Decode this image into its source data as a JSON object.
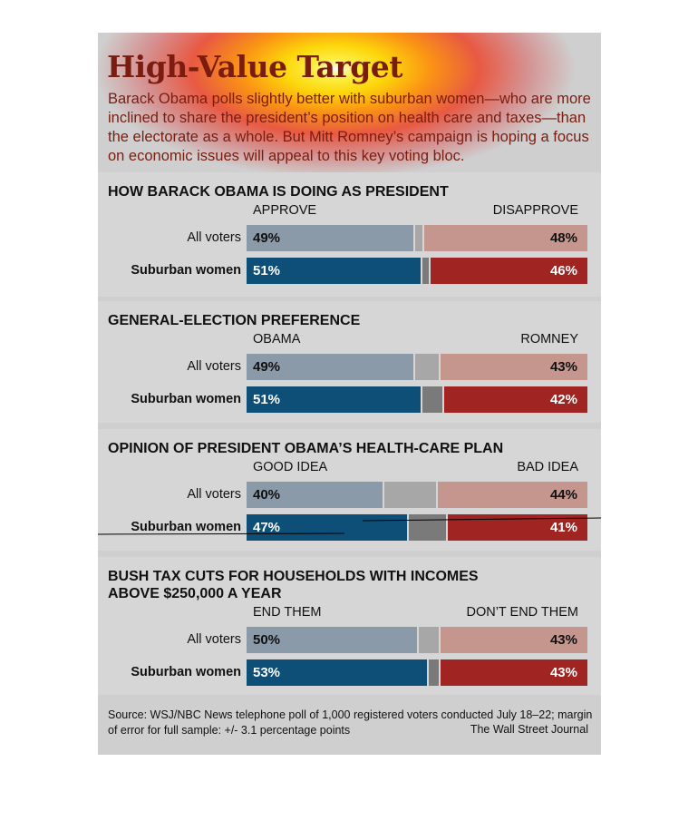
{
  "header": {
    "title": "High-Value Target",
    "subtitle": "Barack Obama polls slightly better with suburban women—who are more inclined to share the president’s position on health care and taxes—than the electorate as a whole. But Mitt Romney’s campaign is hoping a focus on economic issues will appeal to this key voting bloc."
  },
  "colors": {
    "all_left": "#8a9aa8",
    "all_mid": "#a7a7a7",
    "all_right": "#c4968e",
    "women_left": "#0e4f78",
    "women_mid": "#7a7a7a",
    "women_right": "#a02422"
  },
  "chart_data": [
    {
      "type": "bar",
      "title": "HOW BARACK OBAMA IS DOING AS PRESIDENT",
      "left_label": "APPROVE",
      "right_label": "DISAPPROVE",
      "categories": [
        "All voters",
        "Suburban women"
      ],
      "series": [
        {
          "name": "APPROVE",
          "values": [
            49,
            51
          ]
        },
        {
          "name": "DISAPPROVE",
          "values": [
            48,
            46
          ]
        }
      ],
      "labels": [
        [
          "49%",
          "48%"
        ],
        [
          "51%",
          "46%"
        ]
      ]
    },
    {
      "type": "bar",
      "title": "GENERAL-ELECTION PREFERENCE",
      "left_label": "OBAMA",
      "right_label": "ROMNEY",
      "categories": [
        "All voters",
        "Suburban women"
      ],
      "series": [
        {
          "name": "OBAMA",
          "values": [
            49,
            51
          ]
        },
        {
          "name": "ROMNEY",
          "values": [
            43,
            42
          ]
        }
      ],
      "labels": [
        [
          "49%",
          "43%"
        ],
        [
          "51%",
          "42%"
        ]
      ]
    },
    {
      "type": "bar",
      "title": "OPINION OF PRESIDENT OBAMA’S HEALTH-CARE PLAN",
      "left_label": "GOOD IDEA",
      "right_label": "BAD IDEA",
      "categories": [
        "All voters",
        "Suburban women"
      ],
      "series": [
        {
          "name": "GOOD IDEA",
          "values": [
            40,
            47
          ]
        },
        {
          "name": "BAD IDEA",
          "values": [
            44,
            41
          ]
        }
      ],
      "labels": [
        [
          "40%",
          "44%"
        ],
        [
          "47%",
          "41%"
        ]
      ]
    },
    {
      "type": "bar",
      "title": "BUSH TAX CUTS FOR HOUSEHOLDS WITH INCOMES ABOVE $250,000 A YEAR",
      "left_label": "END THEM",
      "right_label": "DON’T END THEM",
      "categories": [
        "All voters",
        "Suburban women"
      ],
      "series": [
        {
          "name": "END THEM",
          "values": [
            50,
            53
          ]
        },
        {
          "name": "DON’T END THEM",
          "values": [
            43,
            43
          ]
        }
      ],
      "labels": [
        [
          "50%",
          "43%"
        ],
        [
          "53%",
          "43%"
        ]
      ]
    }
  ],
  "footer": {
    "source": "Source: WSJ/NBC News telephone poll of 1,000 registered voters conducted July 18–22; margin of error for full sample: +/- 3.1 percentage points",
    "credit": "The Wall Street Journal"
  }
}
